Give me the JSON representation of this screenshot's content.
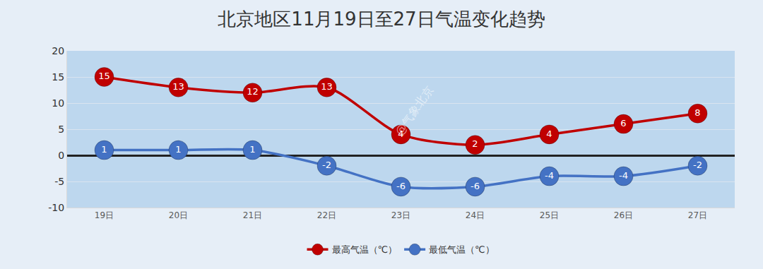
{
  "chart_data": {
    "type": "line",
    "title": "北京地区11月19日至27日气温变化趋势",
    "categories": [
      "19日",
      "20日",
      "21日",
      "22日",
      "23日",
      "24日",
      "25日",
      "26日",
      "27日"
    ],
    "series": [
      {
        "name": "最高气温（℃）",
        "color": "#c00000",
        "values": [
          15,
          13,
          12,
          13,
          4,
          2,
          4,
          6,
          8
        ]
      },
      {
        "name": "最低气温（℃）",
        "color": "#4472c4",
        "values": [
          1,
          1,
          1,
          -2,
          -6,
          -6,
          -4,
          -4,
          -2
        ]
      }
    ],
    "ylim": [
      -10,
      20
    ],
    "yticks": [
      -10,
      -5,
      0,
      5,
      10,
      15,
      20
    ],
    "grid": true,
    "legend": "bottom",
    "data_labels": true,
    "marker": "circle",
    "line_style": "smooth",
    "annotations": [
      {
        "text": "@气象北京"
      }
    ]
  }
}
